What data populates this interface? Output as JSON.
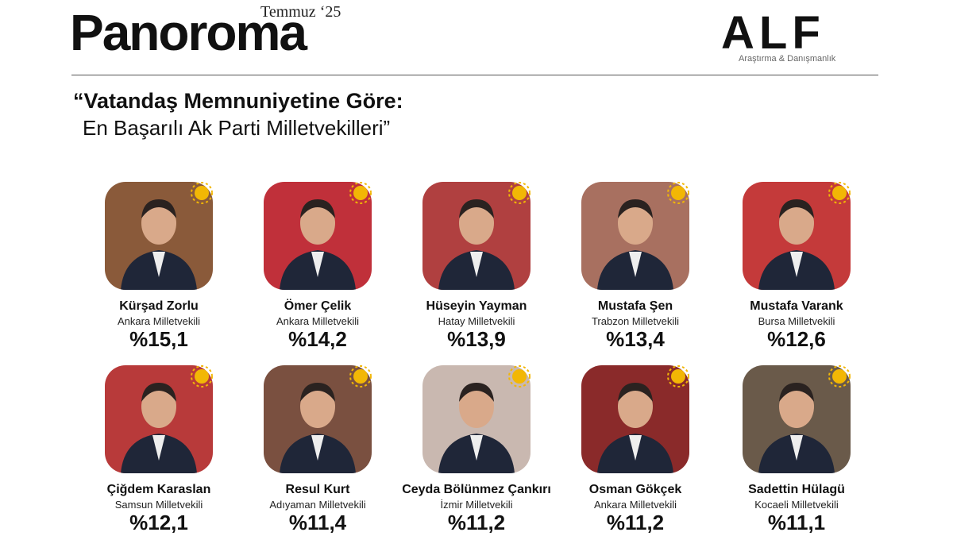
{
  "header": {
    "brand": "Panoroma",
    "edition": "Temmuz ‘25"
  },
  "logo": {
    "name": "ALF",
    "tagline": "Araştırma & Danışmanlık"
  },
  "title": {
    "line1": "“Vatandaş Memnuniyetine Göre:",
    "line2": "En Başarılı Ak Parti Milletvekilleri”"
  },
  "people": [
    {
      "name": "Kürşad Zorlu",
      "role": "Ankara Milletvekili",
      "score": "%15,1"
    },
    {
      "name": "Ömer Çelik",
      "role": "Ankara Milletvekili",
      "score": "%14,2"
    },
    {
      "name": "Hüseyin Yayman",
      "role": "Hatay Milletvekili",
      "score": "%13,9"
    },
    {
      "name": "Mustafa Şen",
      "role": "Trabzon Milletvekili",
      "score": "%13,4"
    },
    {
      "name": "Mustafa Varank",
      "role": "Bursa Milletvekili",
      "score": "%12,6"
    },
    {
      "name": "Çiğdem Karaslan",
      "role": "Samsun Milletvekili",
      "score": "%12,1"
    },
    {
      "name": "Resul Kurt",
      "role": "Adıyaman Milletvekili",
      "score": "%11,4"
    },
    {
      "name": "Ceyda Bölünmez Çankırı",
      "role": "İzmir Milletvekili",
      "score": "%11,2"
    },
    {
      "name": "Osman Gökçek",
      "role": "Ankara Milletvekili",
      "score": "%11,2"
    },
    {
      "name": "Sadettin Hülagü",
      "role": "Kocaeli Milletvekili",
      "score": "%11,1"
    }
  ]
}
